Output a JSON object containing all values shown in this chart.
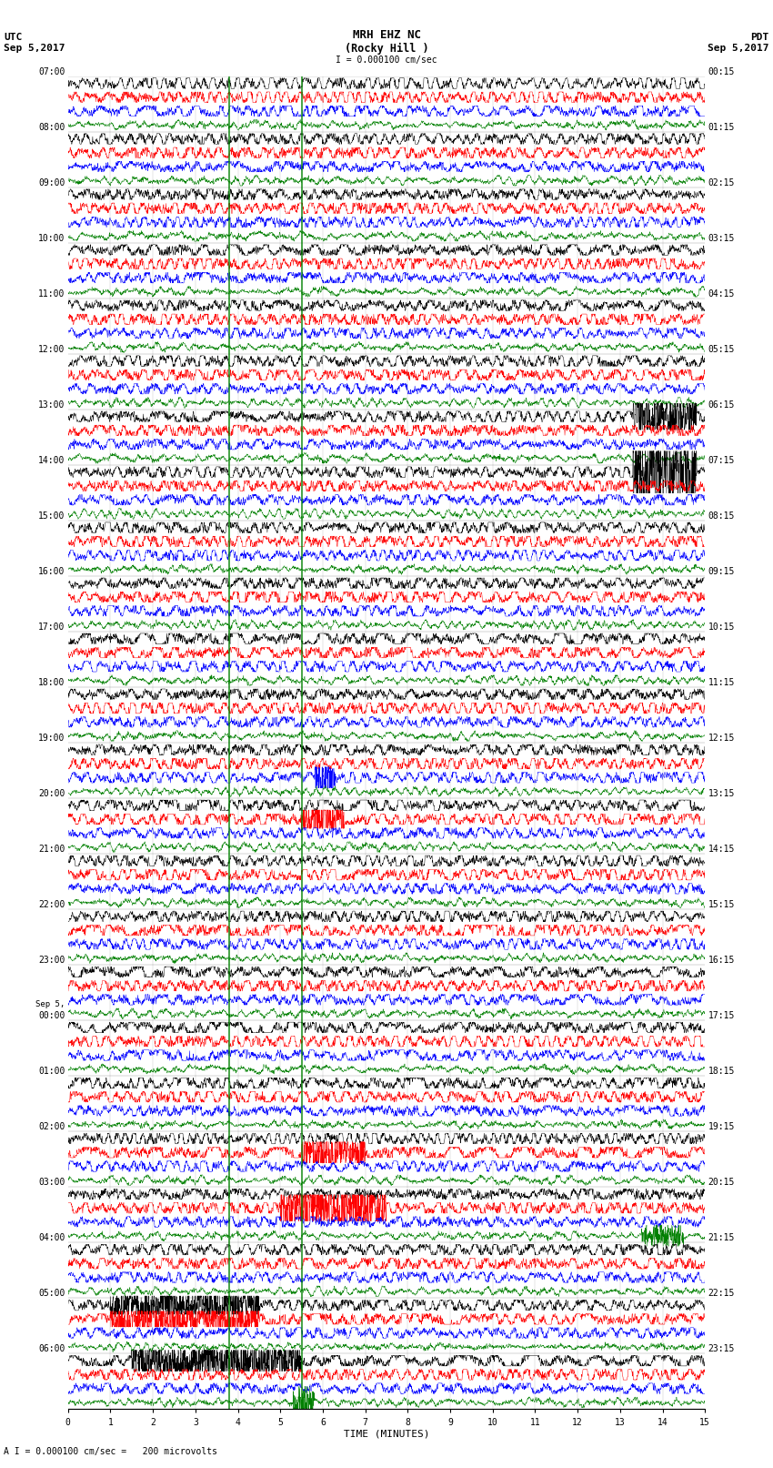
{
  "title_line1": "MRH EHZ NC",
  "title_line2": "(Rocky Hill )",
  "title_line3": "I = 0.000100 cm/sec",
  "label_utc": "UTC",
  "label_utc_date": "Sep 5,2017",
  "label_pdt": "PDT",
  "label_pdt_date": "Sep 5,2017",
  "label_sep5_line1": "Sep 5,",
  "label_sep5_line2": "00:00",
  "xlabel": "TIME (MINUTES)",
  "footer": "A I = 0.000100 cm/sec =   200 microvolts",
  "left_times": [
    "07:00",
    "08:00",
    "09:00",
    "10:00",
    "11:00",
    "12:00",
    "13:00",
    "14:00",
    "15:00",
    "16:00",
    "17:00",
    "18:00",
    "19:00",
    "20:00",
    "21:00",
    "22:00",
    "23:00",
    "00:00",
    "01:00",
    "02:00",
    "03:00",
    "04:00",
    "05:00",
    "06:00"
  ],
  "right_times": [
    "00:15",
    "01:15",
    "02:15",
    "03:15",
    "04:15",
    "05:15",
    "06:15",
    "07:15",
    "08:15",
    "09:15",
    "10:15",
    "11:15",
    "12:15",
    "13:15",
    "14:15",
    "15:15",
    "16:15",
    "17:15",
    "18:15",
    "19:15",
    "20:15",
    "21:15",
    "22:15",
    "23:15"
  ],
  "n_rows": 24,
  "n_traces_per_row": 4,
  "trace_colors": [
    "black",
    "red",
    "blue",
    "green"
  ],
  "xmin": 0,
  "xmax": 15,
  "xticks": [
    0,
    1,
    2,
    3,
    4,
    5,
    6,
    7,
    8,
    9,
    10,
    11,
    12,
    13,
    14,
    15
  ],
  "background_color": "white",
  "title_fontsize": 9,
  "label_fontsize": 8,
  "tick_fontsize": 7,
  "n_pts": 3000,
  "trace_amp": 0.38,
  "noise_scales": {
    "black": 0.2,
    "red": 0.22,
    "blue": 0.18,
    "green": 0.1
  },
  "green_vert_lines": [
    3.8,
    5.5
  ],
  "sep5_row": 17
}
